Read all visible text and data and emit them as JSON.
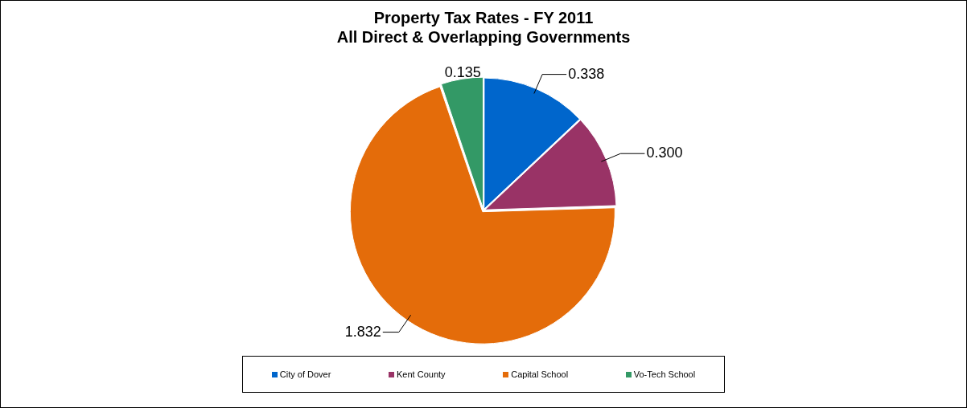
{
  "chart_data": {
    "type": "pie",
    "title": "Property Tax Rates - FY 2011\nAll Direct & Overlapping Governments",
    "categories": [
      "City of Dover",
      "Kent County",
      "Capital School",
      "Vo-Tech School"
    ],
    "values": [
      0.338,
      0.3,
      1.832,
      0.135
    ],
    "value_labels": [
      "0.338",
      "0.300",
      "1.832",
      "0.135"
    ],
    "colors": [
      "#0066cc",
      "#993366",
      "#e46c0a",
      "#339966"
    ],
    "legend": "bottom"
  }
}
